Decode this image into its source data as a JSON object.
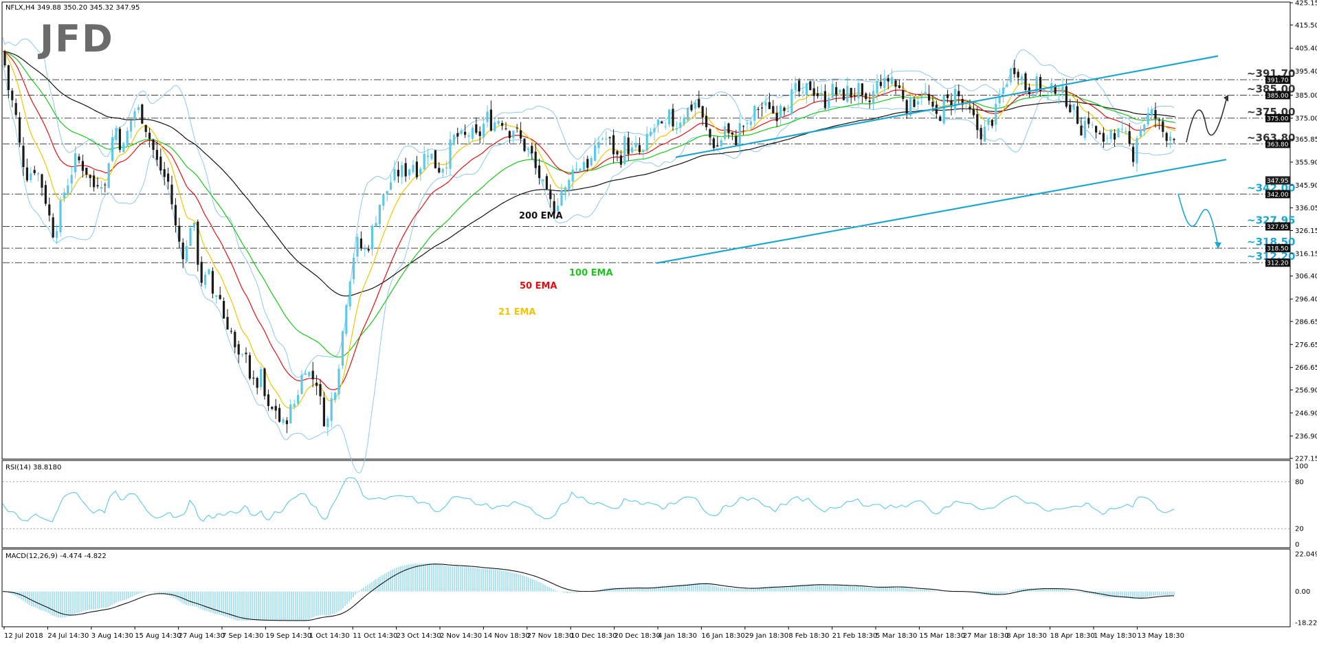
{
  "header": {
    "price": "NFLX,H4  349.88 350.20 345.32 347.95",
    "rsi": "RSI(14) 38.8180",
    "macd": "MACD(12,26,9) -4.474 -4.822"
  },
  "logo": "JFD",
  "colors": {
    "candle_up": "#5bc8e6",
    "candle_down": "#1a1a1a",
    "ema21": "#f2c500",
    "ema50": "#e01010",
    "ema100": "#19c619",
    "ema200": "#111111",
    "bollinger": "#8cc8ee",
    "channel": "#1ea6cf"
  },
  "chart_data": {
    "type": "candlestick",
    "symbol": "NFLX",
    "timeframe": "H4",
    "x_labels": [
      "12 Jul 2018",
      "24 Jul 14:30",
      "3 Aug 14:30",
      "15 Aug 14:30",
      "27 Aug 14:30",
      "7 Sep 14:30",
      "19 Sep 14:30",
      "1 Oct 14:30",
      "11 Oct 14:30",
      "23 Oct 14:30",
      "2 Nov 14:30",
      "14 Nov 18:30",
      "27 Nov 18:30",
      "10 Dec 18:30",
      "20 Dec 18:30",
      "4 Jan 18:30",
      "16 Jan 18:30",
      "29 Jan 18:30",
      "8 Feb 18:30",
      "21 Feb 18:30",
      "5 Mar 18:30",
      "15 Mar 18:30",
      "27 Mar 18:30",
      "8 Apr 18:30",
      "18 Apr 18:30",
      "1 May 18:30",
      "13 May 18:30"
    ],
    "y_ticks": [
      "425.15",
      "415.50",
      "405.40",
      "395.40",
      "385.00",
      "375.00",
      "365.85",
      "355.90",
      "345.90",
      "336.05",
      "326.15",
      "316.15",
      "306.40",
      "296.40",
      "286.65",
      "276.65",
      "266.65",
      "256.90",
      "246.90",
      "236.90",
      "227.15"
    ],
    "ylim": [
      227.15,
      425.15
    ],
    "levels": [
      {
        "label": "~391.70",
        "tag": "391.70",
        "value": 391.7
      },
      {
        "label": "~385.00",
        "tag": "385.00",
        "value": 385.0
      },
      {
        "label": "~375.00",
        "tag": "375.00",
        "value": 375.0
      },
      {
        "label": "~363.80",
        "tag": "363.80",
        "value": 363.8
      },
      {
        "label": "~342.00",
        "tag": "342.00",
        "value": 342.0
      },
      {
        "label": "~327.95",
        "tag": "327.95",
        "value": 327.95
      },
      {
        "label": "~318.50",
        "tag": "318.50",
        "value": 318.5
      },
      {
        "label": "~312.20",
        "tag": "312.20",
        "value": 312.2
      }
    ],
    "current_price": {
      "tag": "347.95",
      "value": 347.95
    },
    "ema_labels": [
      "200 EMA",
      "100 EMA",
      "50 EMA",
      "21 EMA"
    ],
    "close_path": [
      [
        0,
        412
      ],
      [
        5,
        402
      ],
      [
        12,
        388
      ],
      [
        22,
        378
      ],
      [
        30,
        360
      ],
      [
        40,
        350
      ],
      [
        52,
        354
      ],
      [
        63,
        344
      ],
      [
        70,
        335
      ],
      [
        76,
        325
      ],
      [
        84,
        330
      ],
      [
        92,
        342
      ],
      [
        102,
        350
      ],
      [
        111,
        358
      ],
      [
        118,
        355
      ],
      [
        126,
        352
      ],
      [
        136,
        345
      ],
      [
        146,
        350
      ],
      [
        152,
        343
      ],
      [
        160,
        362
      ],
      [
        168,
        372
      ],
      [
        178,
        360
      ],
      [
        188,
        372
      ],
      [
        198,
        380
      ],
      [
        208,
        375
      ],
      [
        218,
        366
      ],
      [
        228,
        356
      ],
      [
        238,
        350
      ],
      [
        247,
        346
      ],
      [
        253,
        330
      ],
      [
        262,
        320
      ],
      [
        270,
        314
      ],
      [
        276,
        330
      ],
      [
        283,
        326
      ],
      [
        288,
        313
      ],
      [
        295,
        302
      ],
      [
        303,
        308
      ],
      [
        310,
        298
      ],
      [
        318,
        300
      ],
      [
        326,
        288
      ],
      [
        335,
        284
      ],
      [
        343,
        272
      ],
      [
        350,
        268
      ],
      [
        358,
        275
      ],
      [
        365,
        260
      ],
      [
        372,
        258
      ],
      [
        380,
        263
      ],
      [
        386,
        252
      ],
      [
        392,
        246
      ],
      [
        400,
        250
      ],
      [
        410,
        240
      ],
      [
        420,
        247
      ],
      [
        430,
        252
      ],
      [
        438,
        262
      ],
      [
        445,
        268
      ],
      [
        452,
        262
      ],
      [
        460,
        262
      ],
      [
        467,
        250
      ],
      [
        475,
        240
      ],
      [
        480,
        250
      ],
      [
        490,
        262
      ],
      [
        500,
        286
      ],
      [
        505,
        300
      ],
      [
        510,
        308
      ],
      [
        516,
        318
      ],
      [
        522,
        322
      ],
      [
        528,
        316
      ],
      [
        536,
        320
      ],
      [
        545,
        330
      ],
      [
        552,
        338
      ],
      [
        560,
        341
      ],
      [
        567,
        347
      ],
      [
        575,
        350
      ],
      [
        583,
        352
      ],
      [
        592,
        352
      ],
      [
        600,
        356
      ],
      [
        608,
        352
      ],
      [
        616,
        358
      ],
      [
        624,
        362
      ],
      [
        632,
        355
      ],
      [
        640,
        353
      ],
      [
        650,
        357
      ],
      [
        658,
        366
      ],
      [
        666,
        367
      ],
      [
        675,
        366
      ],
      [
        684,
        369
      ],
      [
        692,
        366
      ],
      [
        700,
        369
      ],
      [
        708,
        376
      ],
      [
        716,
        372
      ],
      [
        724,
        375
      ],
      [
        732,
        374
      ],
      [
        740,
        369
      ],
      [
        748,
        371
      ],
      [
        756,
        366
      ],
      [
        764,
        362
      ],
      [
        772,
        360
      ],
      [
        780,
        352
      ],
      [
        786,
        349
      ],
      [
        792,
        343
      ],
      [
        800,
        338
      ],
      [
        808,
        336
      ],
      [
        816,
        344
      ],
      [
        826,
        343
      ],
      [
        832,
        356
      ],
      [
        840,
        352
      ],
      [
        848,
        357
      ],
      [
        856,
        355
      ],
      [
        864,
        358
      ],
      [
        870,
        365
      ],
      [
        878,
        367
      ],
      [
        886,
        365
      ],
      [
        894,
        360
      ],
      [
        902,
        356
      ],
      [
        908,
        365
      ],
      [
        918,
        360
      ],
      [
        926,
        362
      ],
      [
        934,
        358
      ],
      [
        942,
        366
      ],
      [
        950,
        370
      ],
      [
        958,
        373
      ],
      [
        966,
        367
      ],
      [
        974,
        376
      ],
      [
        982,
        371
      ],
      [
        990,
        375
      ],
      [
        998,
        378
      ],
      [
        1006,
        380
      ],
      [
        1014,
        383
      ],
      [
        1022,
        374
      ],
      [
        1030,
        368
      ],
      [
        1038,
        364
      ],
      [
        1046,
        362
      ],
      [
        1054,
        372
      ],
      [
        1062,
        366
      ],
      [
        1070,
        365
      ],
      [
        1078,
        373
      ],
      [
        1088,
        370
      ],
      [
        1096,
        377
      ],
      [
        1104,
        380
      ],
      [
        1112,
        379
      ],
      [
        1120,
        381
      ],
      [
        1128,
        375
      ],
      [
        1136,
        383
      ],
      [
        1144,
        380
      ],
      [
        1152,
        385
      ],
      [
        1160,
        388
      ],
      [
        1168,
        383
      ],
      [
        1176,
        390
      ],
      [
        1184,
        387
      ],
      [
        1192,
        385
      ],
      [
        1200,
        382
      ],
      [
        1208,
        388
      ],
      [
        1216,
        386
      ],
      [
        1224,
        384
      ],
      [
        1232,
        387
      ],
      [
        1240,
        385
      ],
      [
        1248,
        388
      ],
      [
        1256,
        380
      ],
      [
        1264,
        381
      ],
      [
        1272,
        387
      ],
      [
        1280,
        392
      ],
      [
        1288,
        389
      ],
      [
        1296,
        394
      ],
      [
        1304,
        388
      ],
      [
        1312,
        387
      ],
      [
        1318,
        380
      ],
      [
        1326,
        381
      ],
      [
        1334,
        384
      ],
      [
        1342,
        387
      ],
      [
        1350,
        383
      ],
      [
        1358,
        376
      ],
      [
        1366,
        375
      ],
      [
        1374,
        383
      ],
      [
        1382,
        381
      ],
      [
        1390,
        387
      ],
      [
        1398,
        382
      ],
      [
        1406,
        378
      ],
      [
        1414,
        376
      ],
      [
        1422,
        370
      ],
      [
        1430,
        368
      ],
      [
        1438,
        373
      ],
      [
        1446,
        375
      ],
      [
        1454,
        383
      ],
      [
        1462,
        390
      ],
      [
        1470,
        395
      ],
      [
        1478,
        398
      ],
      [
        1486,
        393
      ],
      [
        1494,
        387
      ],
      [
        1502,
        389
      ],
      [
        1510,
        390
      ],
      [
        1518,
        387
      ],
      [
        1526,
        385
      ],
      [
        1534,
        389
      ],
      [
        1542,
        387
      ],
      [
        1550,
        384
      ],
      [
        1558,
        380
      ],
      [
        1566,
        376
      ],
      [
        1574,
        370
      ],
      [
        1582,
        376
      ],
      [
        1590,
        370
      ],
      [
        1598,
        368
      ],
      [
        1606,
        362
      ],
      [
        1614,
        371
      ],
      [
        1622,
        369
      ],
      [
        1632,
        367
      ],
      [
        1640,
        366
      ],
      [
        1648,
        358
      ],
      [
        1654,
        368
      ],
      [
        1662,
        372
      ],
      [
        1670,
        376
      ],
      [
        1678,
        377
      ],
      [
        1686,
        372
      ],
      [
        1694,
        368
      ]
    ],
    "rsi": {
      "name": "RSI(14)",
      "value": 38.818,
      "ylim": [
        0,
        100
      ],
      "ticks": [
        "100",
        "80",
        "20",
        "0"
      ]
    },
    "macd": {
      "name": "MACD(12,26,9)",
      "main": -4.474,
      "signal": -4.822,
      "ticks": [
        "22.049",
        "0.00",
        "-18.224"
      ],
      "ylim": [
        -18.224,
        22.049
      ]
    }
  }
}
